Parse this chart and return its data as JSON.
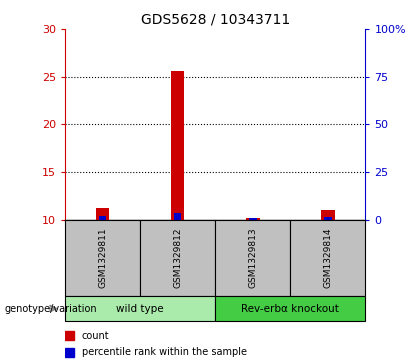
{
  "title": "GDS5628 / 10343711",
  "samples": [
    "GSM1329811",
    "GSM1329812",
    "GSM1329813",
    "GSM1329814"
  ],
  "count_values": [
    11.2,
    25.6,
    10.2,
    11.0
  ],
  "percentile_values": [
    2.0,
    3.5,
    0.8,
    1.5
  ],
  "ylim_left": [
    10,
    30
  ],
  "ylim_right": [
    0,
    100
  ],
  "yticks_left": [
    10,
    15,
    20,
    25,
    30
  ],
  "yticks_right": [
    0,
    25,
    50,
    75,
    100
  ],
  "ytick_labels_right": [
    "0",
    "25",
    "50",
    "75",
    "100%"
  ],
  "grid_values": [
    15,
    20,
    25
  ],
  "groups": [
    {
      "label": "wild type",
      "indices": [
        0,
        1
      ],
      "color": "#AAEAAA"
    },
    {
      "label": "Rev-erbα knockout",
      "indices": [
        2,
        3
      ],
      "color": "#44CC44"
    }
  ],
  "count_color": "#CC0000",
  "percentile_color": "#0000CC",
  "sample_bg_color": "#C0C0C0",
  "title_fontsize": 10,
  "axis_color_left": "#CC0000",
  "axis_color_right": "#0000CC",
  "genotype_label": "genotype/variation",
  "legend_items": [
    {
      "color": "#CC0000",
      "label": "count"
    },
    {
      "color": "#0000CC",
      "label": "percentile rank within the sample"
    }
  ]
}
